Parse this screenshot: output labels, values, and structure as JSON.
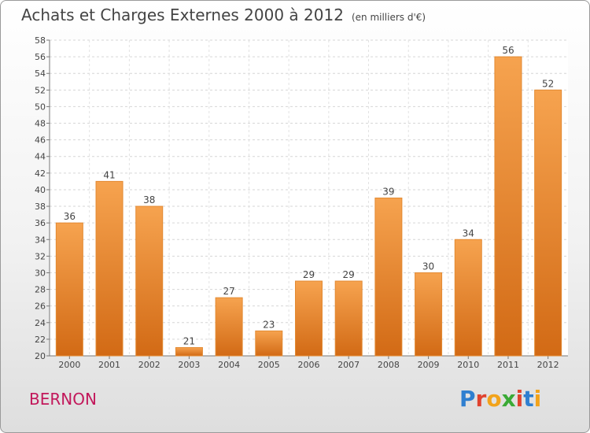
{
  "title": "Achats et Charges Externes 2000 à 2012",
  "unit": "(en milliers d'€)",
  "commune": "BERNON",
  "logo": "Proxiti",
  "colors": {
    "bar_top": "#f6a34f",
    "bar_bottom": "#d26a15",
    "text": "#444444",
    "commune": "#c2185b"
  },
  "chart_data": {
    "type": "bar",
    "title": "Achats et Charges Externes 2000 à 2012",
    "subtitle": "(en milliers d'€)",
    "categories": [
      "2000",
      "2001",
      "2002",
      "2003",
      "2004",
      "2005",
      "2006",
      "2007",
      "2008",
      "2009",
      "2010",
      "2011",
      "2012"
    ],
    "values": [
      36,
      41,
      38,
      21,
      27,
      23,
      29,
      29,
      39,
      30,
      34,
      56,
      52
    ],
    "ylim": [
      20,
      58
    ],
    "yticks": [
      20,
      22,
      24,
      26,
      28,
      30,
      32,
      34,
      36,
      38,
      40,
      42,
      44,
      46,
      48,
      50,
      52,
      54,
      56,
      58
    ],
    "grid": true,
    "data_labels": true
  }
}
